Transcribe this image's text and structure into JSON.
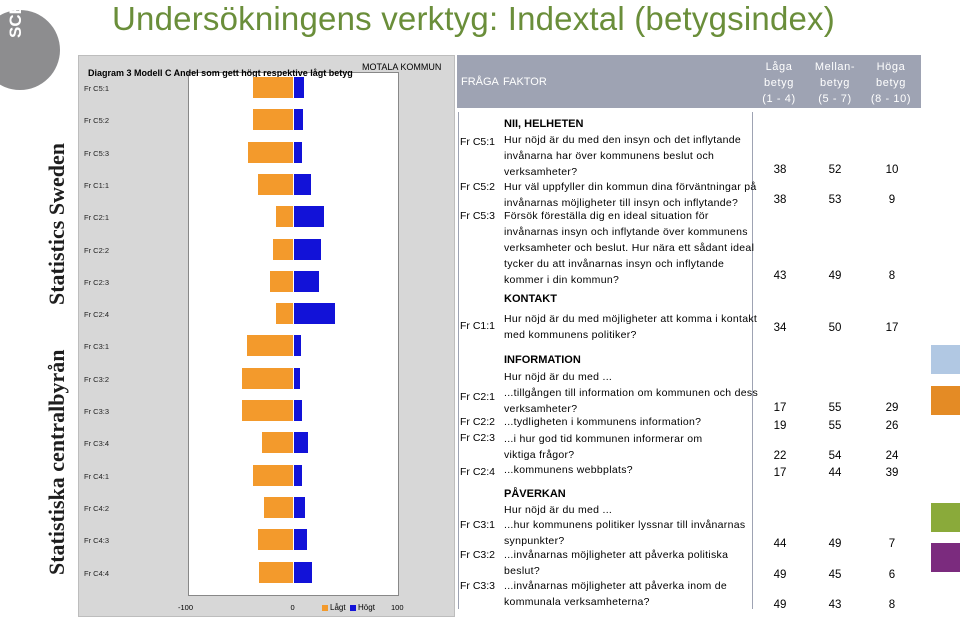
{
  "page": {
    "title": "Undersökningens verktyg: Indextal (betygsindex)"
  },
  "branding": {
    "logo": "SCB",
    "line1": "Statistics Sweden",
    "line2": "Statistiska centralbyrån"
  },
  "chart_data": {
    "type": "bar",
    "title": "Diagram 3 Modell C Andel som gett högt respektive lågt betyg",
    "subtitle": "MOTALA KOMMUN",
    "categories": [
      "Fr C5:1",
      "Fr C5:2",
      "Fr C5:3",
      "Fr C1:1",
      "Fr C2:1",
      "Fr C2:2",
      "Fr C2:3",
      "Fr C2:4",
      "Fr C3:1",
      "Fr C3:2",
      "Fr C3:3",
      "Fr C3:4",
      "Fr C4:1",
      "Fr C4:2",
      "Fr C4:3",
      "Fr C4:4"
    ],
    "series": [
      {
        "name": "Lågt",
        "color": "#f39a2c",
        "values": [
          -38,
          -38,
          -43,
          -34,
          -17,
          -19,
          -22,
          -17,
          -44,
          -49,
          -49,
          -30,
          -38,
          -28,
          -34,
          -33
        ]
      },
      {
        "name": "Högt",
        "color": "#1212d8",
        "values": [
          10,
          9,
          8,
          17,
          29,
          26,
          24,
          39,
          7,
          6,
          8,
          14,
          8,
          11,
          13,
          18
        ]
      }
    ],
    "xticks": [
      "-100",
      "0",
      "100"
    ],
    "xlim": [
      -100,
      100
    ],
    "legend": "bottom-right"
  },
  "table": {
    "header": {
      "fraga": "FRÅGA",
      "faktor": "FAKTOR",
      "col_low": [
        "Låga",
        "betyg",
        "(1 - 4)"
      ],
      "col_mid": [
        "Mellan-",
        "betyg",
        "(5 - 7)"
      ],
      "col_high": [
        "Höga",
        "betyg",
        "(8 - 10)"
      ]
    },
    "sections": [
      {
        "label": "NII, HELHETEN",
        "rows": [
          {
            "code": "Fr C5:1",
            "lines": [
              "Hur nöjd är du med den insyn och det inflytande",
              "invånarna har över kommunens beslut och",
              "verksamheter?"
            ],
            "values": [
              "38",
              "52",
              "10"
            ]
          },
          {
            "code": "Fr C5:2",
            "lines": [
              "Hur väl uppfyller din kommun dina förväntningar på",
              "invånarnas möjligheter till insyn och inflytande?"
            ],
            "values": [
              "38",
              "53",
              "9"
            ]
          },
          {
            "code": "Fr C5:3",
            "lines": [
              "Försök föreställa dig en ideal situation för",
              "invånarnas insyn och inflytande över kommunens",
              "verksamheter och beslut. Hur nära ett sådant ideal",
              "tycker du att invånarnas insyn och inflytande",
              "kommer i din kommun?"
            ],
            "values": [
              "43",
              "49",
              "8"
            ]
          }
        ]
      },
      {
        "label": "KONTAKT",
        "rows": [
          {
            "code": "Fr C1:1",
            "lines": [
              "Hur nöjd är du med möjligheter att komma i kontakt",
              "med kommunens politiker?"
            ],
            "values": [
              "34",
              "50",
              "17"
            ]
          }
        ]
      },
      {
        "label": "INFORMATION",
        "intro": "Hur nöjd är du med ...",
        "rows": [
          {
            "code": "Fr C2:1",
            "lines": [
              "...tillgången till information om kommunen och dess",
              "verksamheter?"
            ],
            "values": [
              "17",
              "55",
              "29"
            ]
          },
          {
            "code": "Fr C2:2",
            "lines": [
              "...tydligheten i kommunens information?"
            ],
            "values": [
              "19",
              "55",
              "26"
            ]
          },
          {
            "code": "Fr C2:3",
            "lines": [
              "...i hur god tid kommunen informerar om",
              "viktiga frågor?"
            ],
            "values": [
              "22",
              "54",
              "24"
            ]
          },
          {
            "code": "Fr C2:4",
            "lines": [
              "...kommunens webbplats?"
            ],
            "values": [
              "17",
              "44",
              "39"
            ]
          }
        ]
      },
      {
        "label": "PÅVERKAN",
        "intro": "Hur nöjd är du med ...",
        "rows": [
          {
            "code": "Fr C3:1",
            "lines": [
              "...hur kommunens politiker lyssnar till invånarnas",
              "synpunkter?"
            ],
            "values": [
              "44",
              "49",
              "7"
            ]
          },
          {
            "code": "Fr C3:2",
            "lines": [
              "...invånarnas möjligheter att påverka politiska",
              "beslut?"
            ],
            "values": [
              "49",
              "45",
              "6"
            ]
          },
          {
            "code": "Fr C3:3",
            "lines": [
              "...invånarnas möjligheter att påverka inom de",
              "kommunala verksamheterna?"
            ],
            "values": [
              "49",
              "43",
              "8"
            ]
          }
        ]
      }
    ]
  },
  "side_squares": [
    "#b1c8e3",
    "#e48b25",
    "#8aaa3a",
    "#7b2b7e"
  ]
}
